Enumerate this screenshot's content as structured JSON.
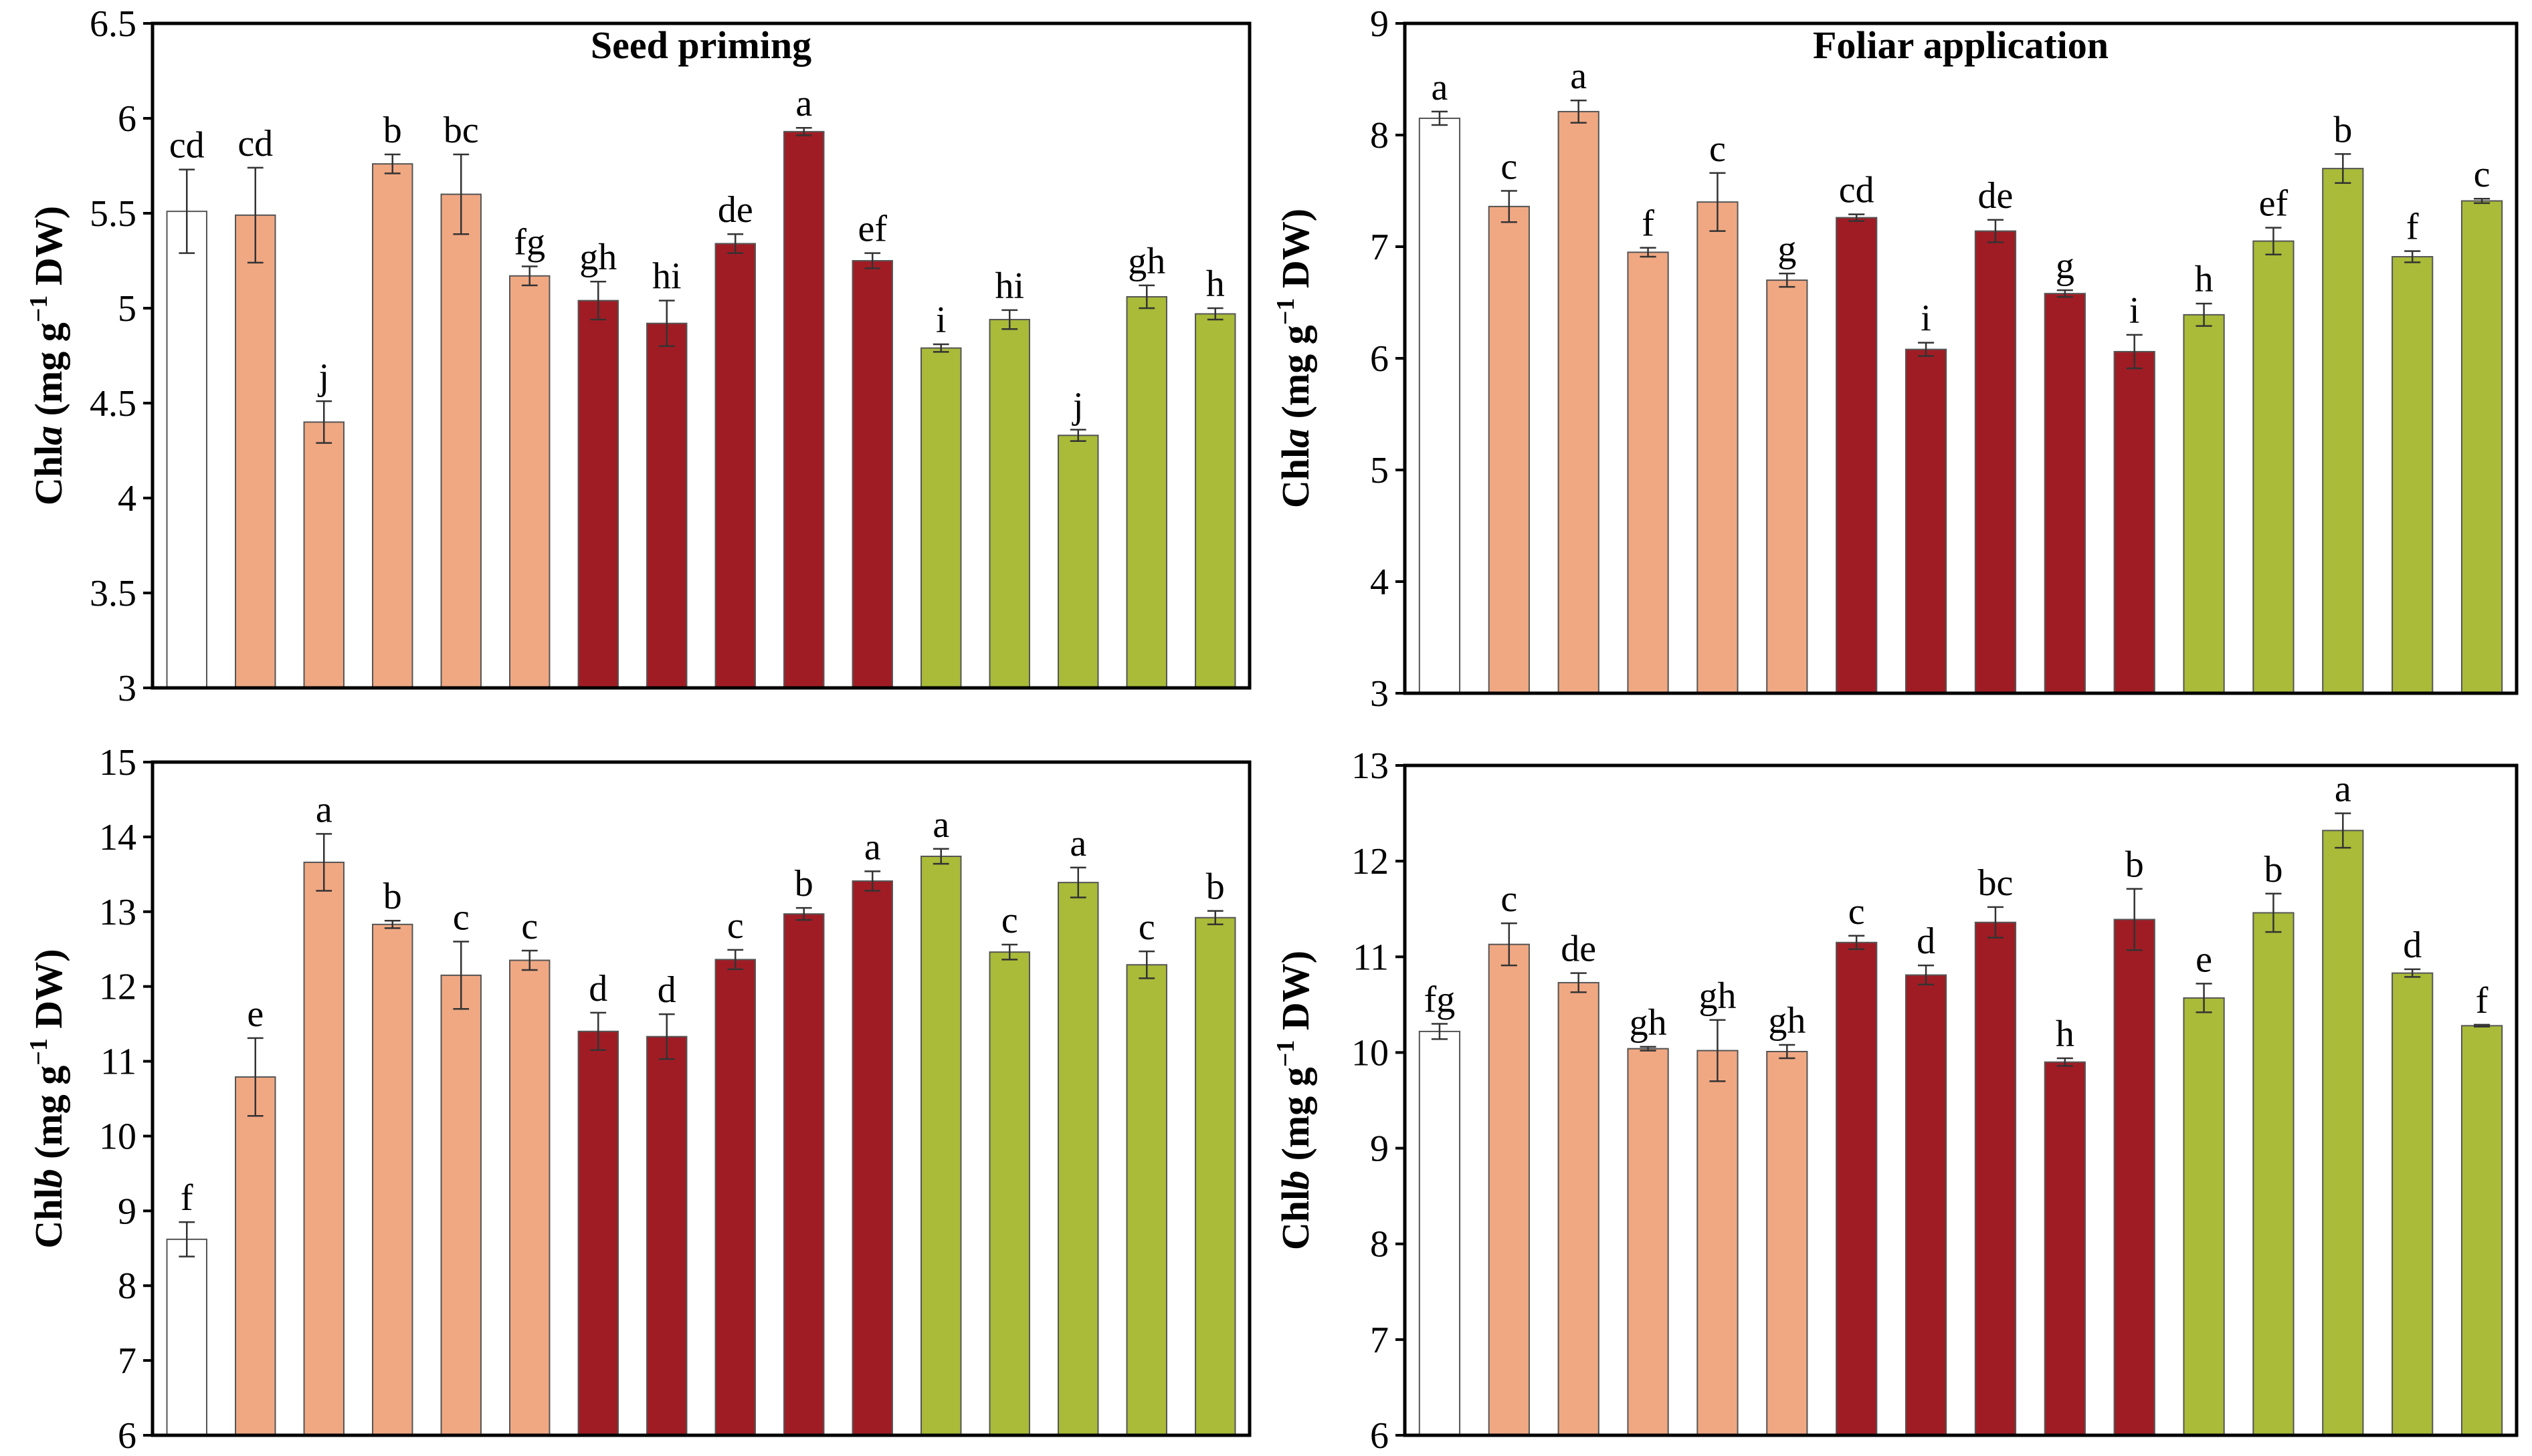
{
  "colors": {
    "control": "#ffffff",
    "group1": "#f0a883",
    "group2": "#a01c24",
    "group3": "#a9bb38",
    "outline": "#555555"
  },
  "chart_data": [
    {
      "id": "chla-seed",
      "type": "bar",
      "title": "Seed priming",
      "ylabel": {
        "prefix": "Chl",
        "italic": "a",
        "mid": " (mg g",
        "sup": "−1",
        "suffix": " DW)"
      },
      "ylim": [
        3,
        6.5
      ],
      "yticks": [
        3,
        3.5,
        4,
        4.5,
        5,
        5.5,
        6,
        6.5
      ],
      "ytick_labels": [
        "3",
        "3.5",
        "4",
        "4.5",
        "5",
        "5.5",
        "6",
        "6.5"
      ],
      "groups": [
        "control",
        "group1",
        "group1",
        "group1",
        "group1",
        "group1",
        "group2",
        "group2",
        "group2",
        "group2",
        "group2",
        "group3",
        "group3",
        "group3",
        "group3",
        "group3"
      ],
      "values": [
        5.51,
        5.49,
        4.4,
        5.76,
        5.6,
        5.17,
        5.04,
        4.92,
        5.34,
        5.93,
        5.25,
        4.79,
        4.94,
        4.33,
        5.06,
        4.97
      ],
      "errors": [
        0.22,
        0.25,
        0.11,
        0.05,
        0.21,
        0.05,
        0.1,
        0.12,
        0.05,
        0.02,
        0.04,
        0.02,
        0.05,
        0.03,
        0.06,
        0.03
      ],
      "sig": [
        "cd",
        "cd",
        "j",
        "b",
        "bc",
        "fg",
        "gh",
        "hi",
        "de",
        "a",
        "ef",
        "i",
        "hi",
        "j",
        "gh",
        "h"
      ]
    },
    {
      "id": "chla-foliar",
      "type": "bar",
      "title": "Foliar application",
      "ylabel": {
        "prefix": "Chl",
        "italic": "a",
        "mid": " (mg g",
        "sup": "−1",
        "suffix": " DW)"
      },
      "ylim": [
        3,
        9
      ],
      "yticks": [
        3,
        4,
        5,
        6,
        7,
        8,
        9
      ],
      "ytick_labels": [
        "3",
        "4",
        "5",
        "6",
        "7",
        "8",
        "9"
      ],
      "groups": [
        "control",
        "group1",
        "group1",
        "group1",
        "group1",
        "group1",
        "group2",
        "group2",
        "group2",
        "group2",
        "group2",
        "group3",
        "group3",
        "group3",
        "group3",
        "group3"
      ],
      "values": [
        8.15,
        7.36,
        8.21,
        6.95,
        7.4,
        6.7,
        7.26,
        6.08,
        7.14,
        6.58,
        6.06,
        6.39,
        7.05,
        7.7,
        6.91,
        7.41
      ],
      "errors": [
        0.06,
        0.14,
        0.1,
        0.04,
        0.26,
        0.06,
        0.03,
        0.06,
        0.1,
        0.03,
        0.15,
        0.1,
        0.12,
        0.13,
        0.05,
        0.02
      ],
      "sig": [
        "a",
        "c",
        "a",
        "f",
        "c",
        "g",
        "cd",
        "i",
        "de",
        "g",
        "i",
        "h",
        "ef",
        "b",
        "f",
        "c"
      ]
    },
    {
      "id": "chlb-seed",
      "type": "bar",
      "title": "",
      "ylabel": {
        "prefix": "Chl",
        "italic": "b",
        "mid": " (mg g",
        "sup": "−1",
        "suffix": " DW)"
      },
      "ylim": [
        6,
        15
      ],
      "yticks": [
        6,
        7,
        8,
        9,
        10,
        11,
        12,
        13,
        14,
        15
      ],
      "ytick_labels": [
        "6",
        "7",
        "8",
        "9",
        "10",
        "11",
        "12",
        "13",
        "14",
        "15"
      ],
      "groups": [
        "control",
        "group1",
        "group1",
        "group1",
        "group1",
        "group1",
        "group2",
        "group2",
        "group2",
        "group2",
        "group2",
        "group3",
        "group3",
        "group3",
        "group3",
        "group3"
      ],
      "values": [
        8.62,
        10.79,
        13.66,
        12.83,
        12.15,
        12.35,
        11.4,
        11.33,
        12.36,
        12.97,
        13.41,
        13.74,
        12.46,
        13.39,
        12.29,
        12.92
      ],
      "errors": [
        0.23,
        0.52,
        0.38,
        0.05,
        0.45,
        0.13,
        0.25,
        0.3,
        0.13,
        0.08,
        0.13,
        0.1,
        0.1,
        0.2,
        0.18,
        0.09
      ],
      "sig": [
        "f",
        "e",
        "a",
        "b",
        "c",
        "c",
        "d",
        "d",
        "c",
        "b",
        "a",
        "a",
        "c",
        "a",
        "c",
        "b"
      ]
    },
    {
      "id": "chlb-foliar",
      "type": "bar",
      "title": "",
      "ylabel": {
        "prefix": "Chl",
        "italic": "b",
        "mid": " (mg g",
        "sup": "−1",
        "suffix": " DW)"
      },
      "ylim": [
        6,
        13
      ],
      "yticks": [
        6,
        7,
        8,
        9,
        10,
        11,
        12,
        13
      ],
      "ytick_labels": [
        "6",
        "7",
        "8",
        "9",
        "10",
        "11",
        "12",
        "13"
      ],
      "groups": [
        "control",
        "group1",
        "group1",
        "group1",
        "group1",
        "group1",
        "group2",
        "group2",
        "group2",
        "group2",
        "group2",
        "group3",
        "group3",
        "group3",
        "group3",
        "group3"
      ],
      "values": [
        10.22,
        11.13,
        10.73,
        10.04,
        10.02,
        10.01,
        11.15,
        10.81,
        11.36,
        9.9,
        11.39,
        10.57,
        11.46,
        12.32,
        10.83,
        10.28
      ],
      "errors": [
        0.08,
        0.22,
        0.1,
        0.02,
        0.32,
        0.07,
        0.07,
        0.1,
        0.16,
        0.04,
        0.32,
        0.15,
        0.2,
        0.18,
        0.04,
        0.01
      ],
      "sig": [
        "fg",
        "c",
        "de",
        "gh",
        "gh",
        "gh",
        "c",
        "d",
        "bc",
        "h",
        "b",
        "e",
        "b",
        "a",
        "d",
        "f"
      ]
    }
  ]
}
